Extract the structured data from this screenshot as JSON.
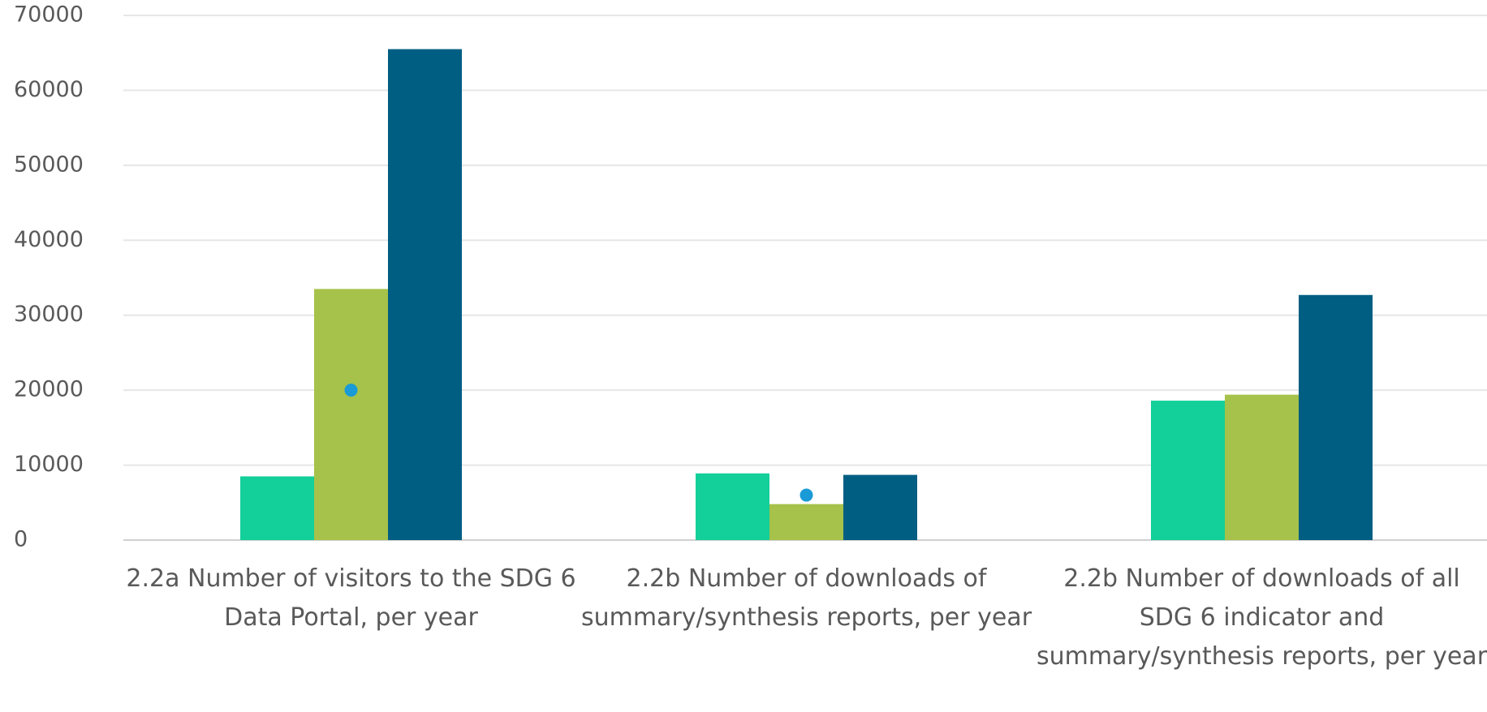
{
  "chart_data": {
    "type": "bar",
    "categories": [
      "2.2a Number of visitors to the SDG 6 Data Portal, per year",
      "2.2b Number of downloads of summary/synthesis reports, per year",
      "2.2b Number of downloads of all SDG 6 indicator and summary/synthesis reports, per year"
    ],
    "series": [
      {
        "color": "#13cf9a",
        "values": [
          8500,
          8900,
          18600
        ]
      },
      {
        "color": "#a6c24a",
        "values": [
          33500,
          4800,
          19400
        ]
      },
      {
        "color": "#005e82",
        "values": [
          65500,
          8700,
          32700
        ]
      },
      {
        "type": "point",
        "color": "#1a9ad6",
        "values": [
          20000,
          6000,
          null
        ]
      }
    ],
    "ylim": [
      0,
      70000
    ],
    "yticks": [
      0,
      10000,
      20000,
      30000,
      40000,
      50000,
      60000,
      70000
    ],
    "grid": true
  }
}
